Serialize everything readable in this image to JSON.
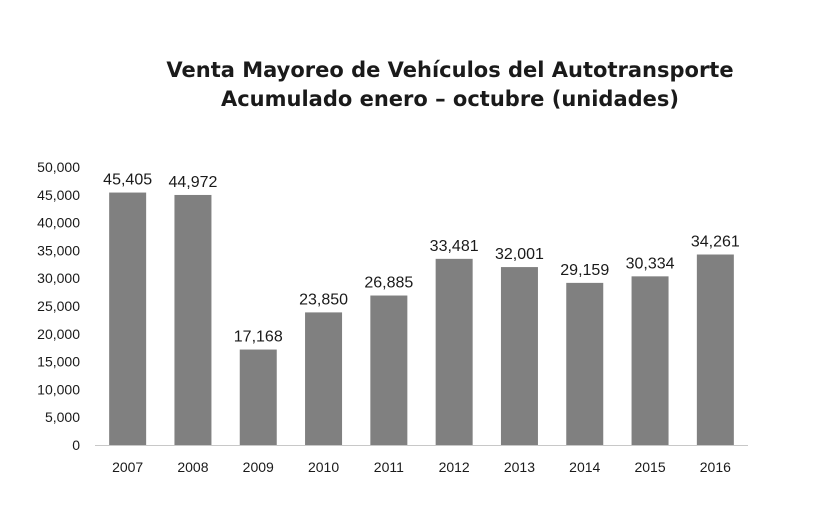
{
  "chart_data": {
    "type": "bar",
    "title": "Venta Mayoreo de Vehículos del Autotransporte",
    "subtitle": "Acumulado enero – octubre (unidades)",
    "categories": [
      "2007",
      "2008",
      "2009",
      "2010",
      "2011",
      "2012",
      "2013",
      "2014",
      "2015",
      "2016"
    ],
    "values": [
      45405,
      44972,
      17168,
      23850,
      26885,
      33481,
      32001,
      29159,
      30334,
      34261
    ],
    "data_labels": [
      "45,405",
      "44,972",
      "17,168",
      "23,850",
      "26,885",
      "33,481",
      "32,001",
      "29,159",
      "30,334",
      "34,261"
    ],
    "ylim": [
      0,
      50000
    ],
    "yticks": [
      "0",
      "5,000",
      "10,000",
      "15,000",
      "20,000",
      "25,000",
      "30,000",
      "35,000",
      "40,000",
      "45,000",
      "50,000"
    ],
    "grid": false,
    "bar_color": "#808080"
  }
}
